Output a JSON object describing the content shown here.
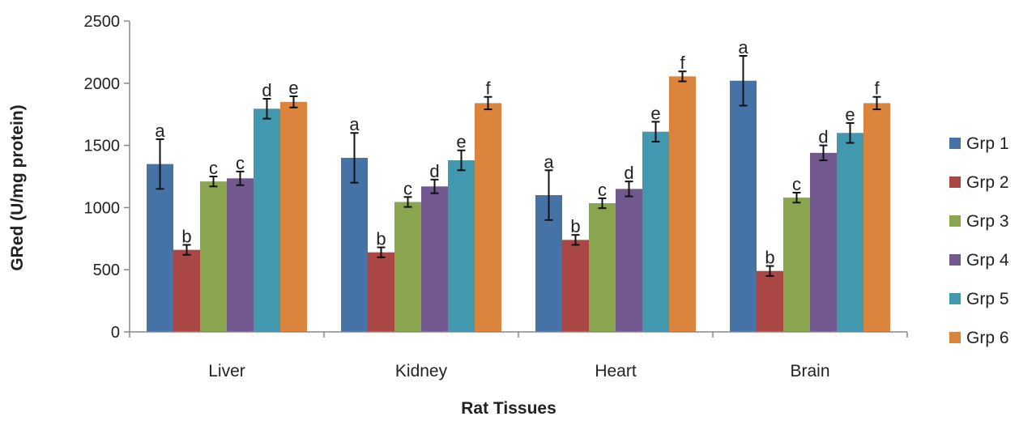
{
  "chart_data": {
    "type": "bar",
    "title": "",
    "xlabel": "Rat Tissues",
    "ylabel": "GRed (U/mg protein)",
    "ylim": [
      0,
      2500
    ],
    "yticks": [
      0,
      500,
      1000,
      1500,
      2000,
      2500
    ],
    "grid": false,
    "legend_position": "right",
    "categories": [
      "Liver",
      "Kidney",
      "Heart",
      "Brain"
    ],
    "series": [
      {
        "name": "Grp 1",
        "color": "#4572A7",
        "values": [
          1350,
          1400,
          1100,
          2020
        ],
        "errors": [
          200,
          200,
          200,
          200
        ],
        "labels": [
          "a",
          "a",
          "a",
          "a"
        ]
      },
      {
        "name": "Grp 2",
        "color": "#AA4643",
        "values": [
          660,
          640,
          740,
          490
        ],
        "errors": [
          40,
          40,
          40,
          40
        ],
        "labels": [
          "b",
          "b",
          "b",
          "b"
        ]
      },
      {
        "name": "Grp 3",
        "color": "#89A54E",
        "values": [
          1210,
          1045,
          1035,
          1080
        ],
        "errors": [
          40,
          40,
          40,
          40
        ],
        "labels": [
          "c",
          "c",
          "c",
          "c"
        ]
      },
      {
        "name": "Grp 4",
        "color": "#71588F",
        "values": [
          1235,
          1170,
          1150,
          1440
        ],
        "errors": [
          55,
          55,
          60,
          60
        ],
        "labels": [
          "c",
          "d",
          "d",
          "d"
        ]
      },
      {
        "name": "Grp 5",
        "color": "#4198AF",
        "values": [
          1795,
          1380,
          1610,
          1600
        ],
        "errors": [
          80,
          80,
          80,
          80
        ],
        "labels": [
          "d",
          "e",
          "e",
          "e"
        ]
      },
      {
        "name": "Grp 6",
        "color": "#DB843D",
        "values": [
          1850,
          1840,
          2055,
          1840
        ],
        "errors": [
          45,
          50,
          40,
          50
        ],
        "labels": [
          "e",
          "f",
          "f",
          "f"
        ]
      }
    ]
  }
}
